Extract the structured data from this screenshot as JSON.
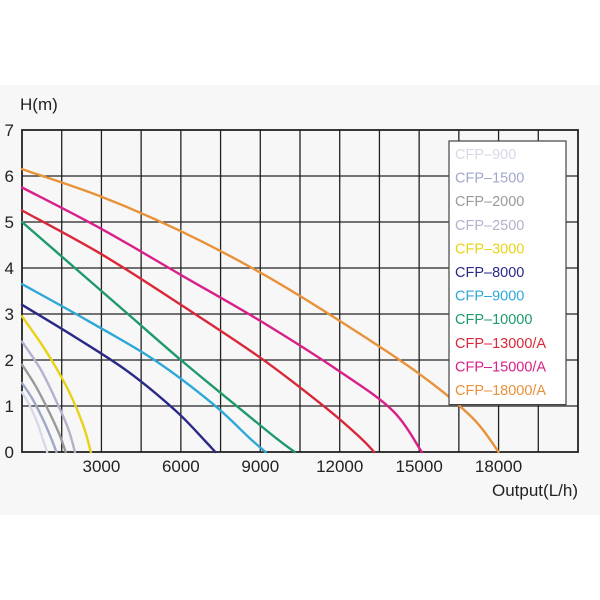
{
  "chart_data": {
    "type": "line",
    "xlabel": "Output(L/h)",
    "ylabel": "H(m)",
    "xlim": [
      0,
      21000
    ],
    "ylim": [
      0,
      7
    ],
    "x_ticks": [
      3000,
      6000,
      9000,
      12000,
      15000,
      18000
    ],
    "y_ticks": [
      0,
      1,
      2,
      3,
      4,
      5,
      6,
      7
    ],
    "grid": true,
    "legend_position": "top-right",
    "series": [
      {
        "name": "CFP–900",
        "color": "#d8d8e8",
        "x": [
          0,
          300,
          600,
          800,
          950
        ],
        "y": [
          1.3,
          1.0,
          0.6,
          0.25,
          0
        ]
      },
      {
        "name": "CFP–1500",
        "color": "#a0a8c8",
        "x": [
          0,
          400,
          800,
          1100,
          1300
        ],
        "y": [
          1.5,
          1.15,
          0.7,
          0.3,
          0
        ]
      },
      {
        "name": "CFP–2000",
        "color": "#9a9a9a",
        "x": [
          0,
          500,
          1000,
          1400,
          1650
        ],
        "y": [
          1.9,
          1.45,
          0.9,
          0.4,
          0
        ]
      },
      {
        "name": "CFP–2500",
        "color": "#b6b0cc",
        "x": [
          0,
          700,
          1300,
          1750,
          2000
        ],
        "y": [
          2.4,
          1.8,
          1.1,
          0.5,
          0
        ]
      },
      {
        "name": "CFP–3000",
        "color": "#e8d21a",
        "x": [
          0,
          900,
          1700,
          2300,
          2600
        ],
        "y": [
          2.95,
          2.2,
          1.4,
          0.6,
          0
        ]
      },
      {
        "name": "CFP–8000",
        "color": "#2a2a86",
        "x": [
          0,
          2000,
          4000,
          5800,
          6900,
          7300
        ],
        "y": [
          3.2,
          2.5,
          1.75,
          0.9,
          0.25,
          0
        ]
      },
      {
        "name": "CFP–9000",
        "color": "#2fa8d8",
        "x": [
          0,
          2500,
          5000,
          7200,
          8600,
          9200
        ],
        "y": [
          3.65,
          2.85,
          2.0,
          1.05,
          0.3,
          0
        ]
      },
      {
        "name": "CFP–10000",
        "color": "#1f9a6a",
        "x": [
          0,
          2000,
          4000,
          6000,
          8000,
          9600,
          10300
        ],
        "y": [
          5.0,
          4.0,
          3.0,
          2.0,
          1.05,
          0.3,
          0
        ]
      },
      {
        "name": "CFP–13000/A",
        "color": "#d8283a",
        "x": [
          0,
          3000,
          6000,
          9000,
          11500,
          12800,
          13300
        ],
        "y": [
          5.25,
          4.3,
          3.2,
          2.05,
          0.95,
          0.3,
          0
        ]
      },
      {
        "name": "CFP–15000/A",
        "color": "#d8208a",
        "x": [
          0,
          3000,
          6000,
          9000,
          12000,
          14000,
          15100
        ],
        "y": [
          5.75,
          4.85,
          3.85,
          2.85,
          1.75,
          0.9,
          0
        ]
      },
      {
        "name": "CFP–18000/A",
        "color": "#e8923a",
        "x": [
          0,
          3000,
          6000,
          9000,
          12000,
          15000,
          17000,
          18000
        ],
        "y": [
          6.15,
          5.55,
          4.8,
          3.9,
          2.85,
          1.7,
          0.75,
          0
        ]
      }
    ]
  }
}
